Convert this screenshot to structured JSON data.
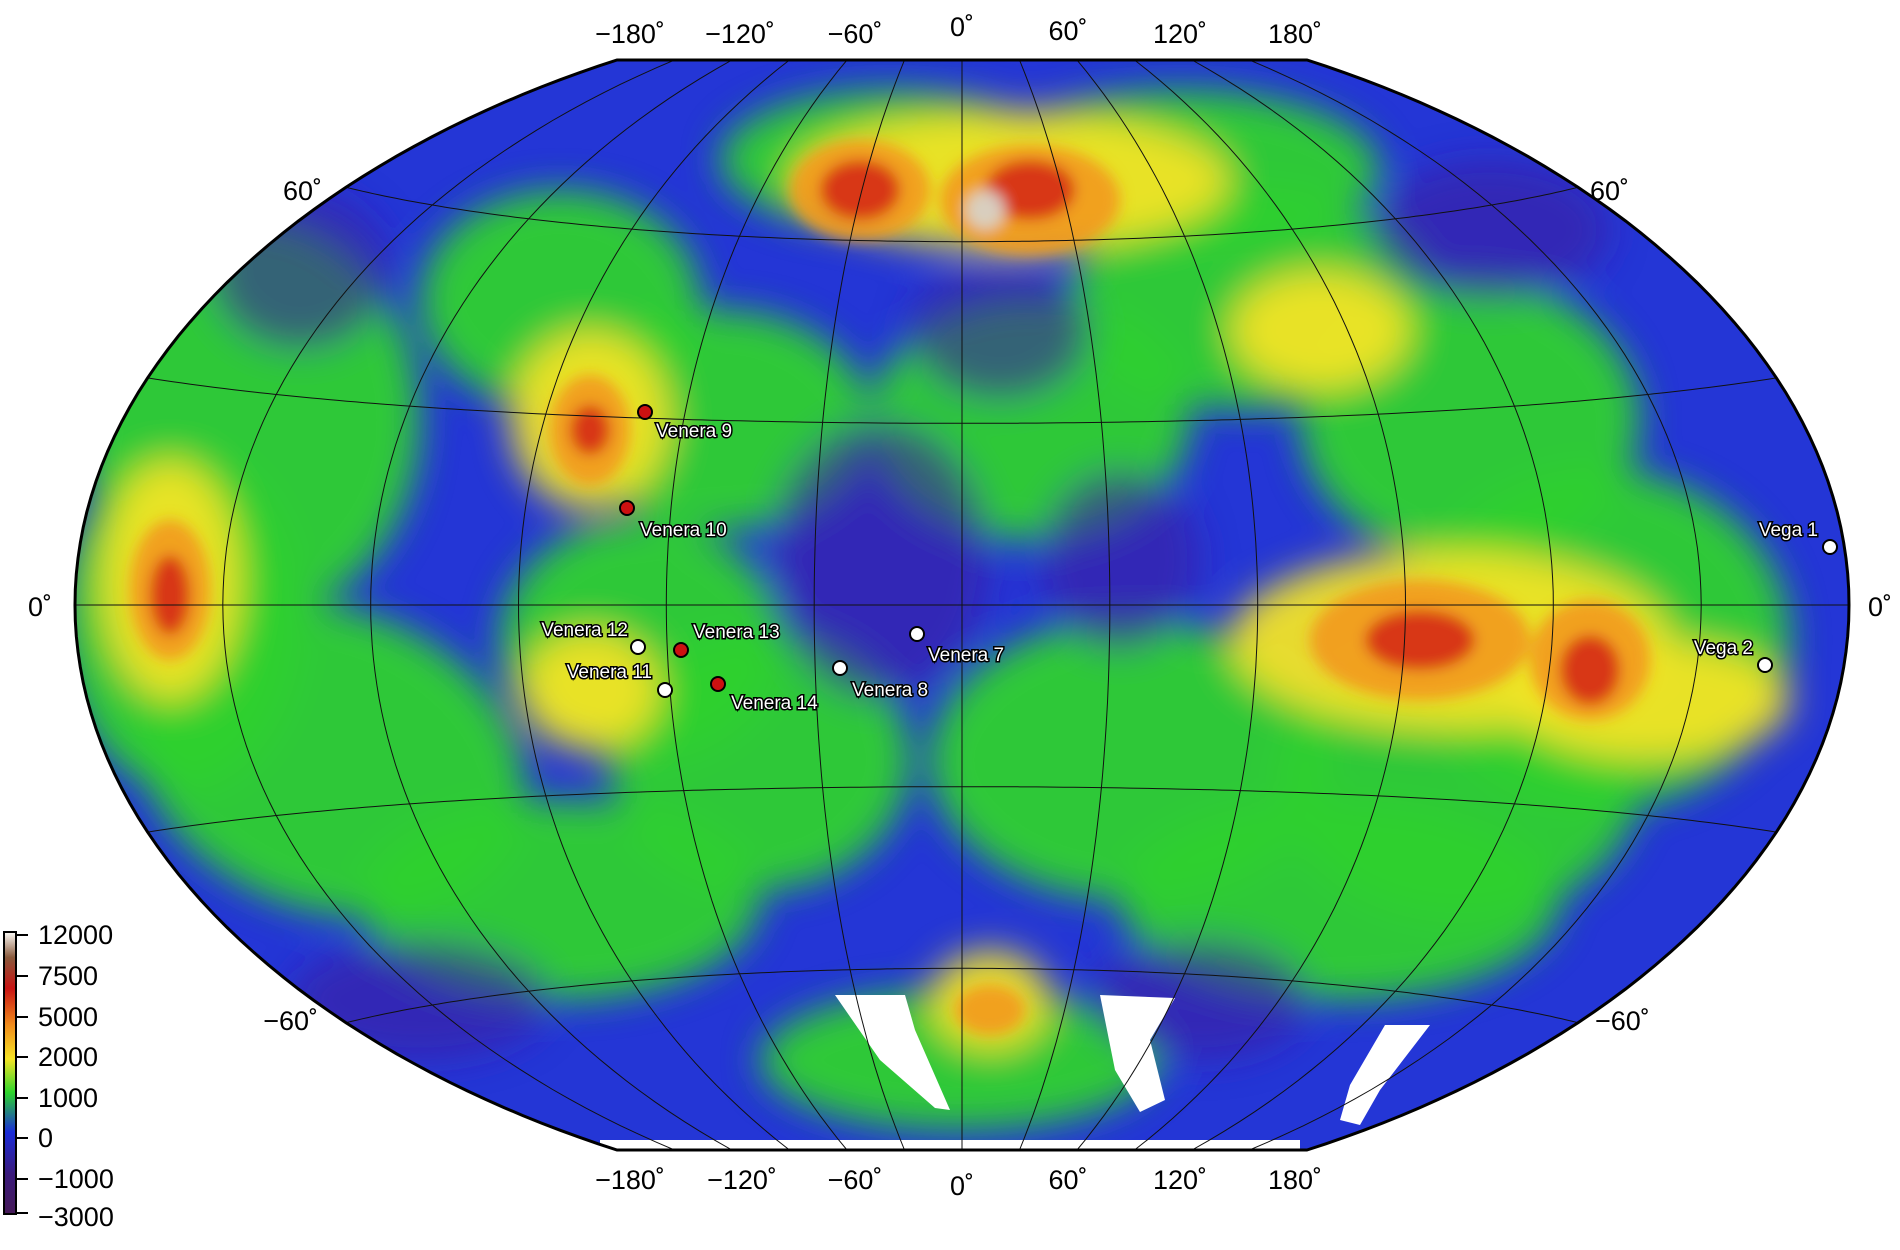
{
  "map": {
    "projection": "Winkel tripel",
    "graticule": {
      "meridians": [
        -180,
        -150,
        -120,
        -90,
        -60,
        -30,
        0,
        30,
        60,
        90,
        120,
        150,
        180
      ],
      "parallels": [
        -60,
        -30,
        0,
        30,
        60
      ]
    },
    "top_labels": [
      "−180˚",
      "−120˚",
      "−60˚",
      "0˚",
      "60˚",
      "120˚",
      "180˚"
    ],
    "bottom_labels": [
      "−180˚",
      "−120˚",
      "−60˚",
      "0˚",
      "60˚",
      "120˚",
      "180˚"
    ],
    "left_labels": [
      "60˚",
      "0˚",
      "−60˚"
    ],
    "right_labels": [
      "60˚",
      "0˚",
      "−60˚"
    ]
  },
  "landing_sites": [
    {
      "name": "Venera 9",
      "color": "#cc1111"
    },
    {
      "name": "Venera 10",
      "color": "#cc1111"
    },
    {
      "name": "Venera 12",
      "color": "#ffffff"
    },
    {
      "name": "Venera 11",
      "color": "#ffffff"
    },
    {
      "name": "Venera 13",
      "color": "#cc1111"
    },
    {
      "name": "Venera 14",
      "color": "#cc1111"
    },
    {
      "name": "Venera 8",
      "color": "#ffffff"
    },
    {
      "name": "Venera 7",
      "color": "#ffffff"
    },
    {
      "name": "Vega 1",
      "color": "#ffffff"
    },
    {
      "name": "Vega 2",
      "color": "#ffffff"
    }
  ],
  "colorbar": {
    "ticks": [
      "12000",
      "7500",
      "5000",
      "2000",
      "1000",
      "0",
      "−1000",
      "−3000"
    ],
    "colors": [
      "#fdfcf8",
      "#8a5a3c",
      "#c81414",
      "#f08c1c",
      "#f6e426",
      "#2cd42c",
      "#1a2cd8",
      "#3a1a7a",
      "#461a58"
    ]
  },
  "colors": {
    "low": "#2030d0",
    "mid": "#30d030",
    "high": "#f0a020",
    "peak": "#d02010",
    "summit": "#f4f0e8"
  }
}
